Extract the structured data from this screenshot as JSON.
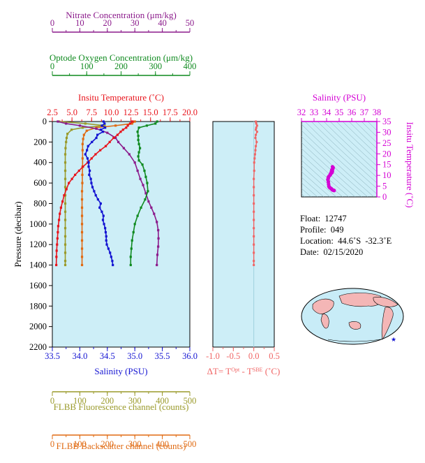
{
  "colors": {
    "nitrate": "#8b1a8b",
    "oxygen": "#0f8a1f",
    "temperature": "#e8141c",
    "salinity": "#1414d2",
    "fluorescence": "#9a9a2a",
    "backscatter": "#e06a12",
    "delta_t": "#f06464",
    "ts_axis": "#d400d4",
    "panel_bg": "#cdeef7"
  },
  "info": {
    "float": "Float:  12747",
    "profile": "Profile:  049",
    "location": "Location:  44.6˚S  -32.3˚E",
    "date": "Date:  02/15/2020"
  },
  "chart_data": [
    {
      "type": "line",
      "name": "profile-panel",
      "ylabel": "Pressure (decibar)",
      "ylim": [
        2200,
        0
      ],
      "yticks": [
        "0",
        "200",
        "400",
        "600",
        "800",
        "1000",
        "1200",
        "1400",
        "1600",
        "1800",
        "2000",
        "2200"
      ],
      "axes": {
        "nitrate": {
          "label": "Nitrate Concentration (μm/kg)",
          "lim": [
            0,
            50
          ],
          "ticks": [
            "0",
            "10",
            "20",
            "30",
            "40",
            "50"
          ]
        },
        "oxygen": {
          "label": "Optode Oxygen Concentration (μm/kg)",
          "lim": [
            0,
            400
          ],
          "ticks": [
            "0",
            "100",
            "200",
            "300",
            "400"
          ]
        },
        "temperature": {
          "label": "Insitu Temperature (˚C)",
          "lim": [
            2.5,
            20.0
          ],
          "ticks": [
            "2.5",
            "5.0",
            "7.5",
            "10.0",
            "12.5",
            "15.0",
            "17.5",
            "20.0"
          ]
        },
        "salinity": {
          "label": "Salinity (PSU)",
          "lim": [
            33.5,
            36.0
          ],
          "ticks": [
            "33.5",
            "34.0",
            "34.5",
            "35.0",
            "35.5",
            "36.0"
          ]
        },
        "fluorescence": {
          "label": "FLBB Fluorescence channel (counts)",
          "lim": [
            0,
            500
          ],
          "ticks": [
            "0",
            "100",
            "200",
            "300",
            "400",
            "500"
          ]
        },
        "backscatter": {
          "label": "FLBB Backscatter channel (counts)",
          "lim": [
            0,
            500
          ],
          "ticks": [
            "0",
            "100",
            "200",
            "300",
            "400",
            "500"
          ]
        }
      },
      "series": [
        {
          "axis": "nitrate",
          "values": [
            [
              2,
              0
            ],
            [
              5,
              20
            ],
            [
              10,
              40
            ],
            [
              16,
              70
            ],
            [
              20,
              110
            ],
            [
              23,
              160
            ],
            [
              24,
              200
            ],
            [
              26,
              260
            ],
            [
              28,
              320
            ],
            [
              30,
              400
            ],
            [
              31,
              480
            ],
            [
              32,
              560
            ],
            [
              33,
              620
            ],
            [
              34,
              700
            ],
            [
              35,
              780
            ],
            [
              36,
              840
            ],
            [
              37,
              900
            ],
            [
              38,
              980
            ],
            [
              38.5,
              1060
            ],
            [
              38.6,
              1140
            ],
            [
              38.5,
              1220
            ],
            [
              38.2,
              1300
            ],
            [
              38,
              1400
            ]
          ]
        },
        {
          "axis": "oxygen",
          "values": [
            [
              305,
              0
            ],
            [
              300,
              20
            ],
            [
              275,
              40
            ],
            [
              252,
              60
            ],
            [
              248,
              100
            ],
            [
              250,
              140
            ],
            [
              250,
              180
            ],
            [
              252,
              220
            ],
            [
              255,
              260
            ],
            [
              252,
              300
            ],
            [
              250,
              340
            ],
            [
              252,
              380
            ],
            [
              262,
              420
            ],
            [
              268,
              480
            ],
            [
              272,
              540
            ],
            [
              276,
              600
            ],
            [
              278,
              680
            ],
            [
              270,
              760
            ],
            [
              258,
              840
            ],
            [
              248,
              920
            ],
            [
              240,
              1000
            ],
            [
              236,
              1080
            ],
            [
              232,
              1160
            ],
            [
              230,
              1240
            ],
            [
              228,
              1320
            ],
            [
              228,
              1400
            ]
          ]
        },
        {
          "axis": "temperature",
          "values": [
            [
              12.7,
              0
            ],
            [
              12.4,
              20
            ],
            [
              12.1,
              40
            ],
            [
              11.9,
              60
            ],
            [
              11.5,
              80
            ],
            [
              11.2,
              100
            ],
            [
              10.8,
              130
            ],
            [
              10.3,
              160
            ],
            [
              9.8,
              200
            ],
            [
              9.3,
              240
            ],
            [
              8.6,
              280
            ],
            [
              8.0,
              320
            ],
            [
              7.5,
              360
            ],
            [
              7.0,
              400
            ],
            [
              6.4,
              440
            ],
            [
              5.9,
              480
            ],
            [
              5.4,
              520
            ],
            [
              5.0,
              560
            ],
            [
              4.6,
              600
            ],
            [
              4.3,
              660
            ],
            [
              4.0,
              720
            ],
            [
              3.8,
              780
            ],
            [
              3.6,
              840
            ],
            [
              3.45,
              900
            ],
            [
              3.35,
              960
            ],
            [
              3.25,
              1020
            ],
            [
              3.2,
              1080
            ],
            [
              3.15,
              1140
            ],
            [
              3.1,
              1200
            ],
            [
              3.05,
              1260
            ],
            [
              3.02,
              1320
            ],
            [
              3.0,
              1400
            ]
          ]
        },
        {
          "axis": "salinity",
          "values": [
            [
              34.43,
              0
            ],
            [
              34.45,
              20
            ],
            [
              34.4,
              40
            ],
            [
              34.46,
              60
            ],
            [
              34.38,
              80
            ],
            [
              34.42,
              100
            ],
            [
              34.32,
              130
            ],
            [
              34.3,
              160
            ],
            [
              34.22,
              200
            ],
            [
              34.15,
              240
            ],
            [
              34.13,
              280
            ],
            [
              34.1,
              320
            ],
            [
              34.14,
              360
            ],
            [
              34.16,
              400
            ],
            [
              34.16,
              440
            ],
            [
              34.18,
              480
            ],
            [
              34.17,
              520
            ],
            [
              34.2,
              560
            ],
            [
              34.21,
              600
            ],
            [
              34.23,
              640
            ],
            [
              34.26,
              680
            ],
            [
              34.29,
              720
            ],
            [
              34.33,
              760
            ],
            [
              34.38,
              800
            ],
            [
              34.36,
              840
            ],
            [
              34.4,
              880
            ],
            [
              34.43,
              920
            ],
            [
              34.42,
              960
            ],
            [
              34.44,
              1000
            ],
            [
              34.46,
              1040
            ],
            [
              34.47,
              1080
            ],
            [
              34.48,
              1120
            ],
            [
              34.48,
              1160
            ],
            [
              34.49,
              1200
            ],
            [
              34.52,
              1240
            ],
            [
              34.55,
              1280
            ],
            [
              34.57,
              1320
            ],
            [
              34.59,
              1360
            ],
            [
              34.6,
              1400
            ]
          ]
        },
        {
          "axis": "fluorescence",
          "values": [
            [
              25,
              0
            ],
            [
              120,
              20
            ],
            [
              190,
              40
            ],
            [
              110,
              60
            ],
            [
              70,
              80
            ],
            [
              55,
              120
            ],
            [
              52,
              160
            ],
            [
              50,
              200
            ],
            [
              48,
              260
            ],
            [
              47,
              320
            ],
            [
              47,
              400
            ],
            [
              47,
              480
            ],
            [
              47,
              560
            ],
            [
              47,
              640
            ],
            [
              47,
              720
            ],
            [
              47,
              800
            ],
            [
              47,
              880
            ],
            [
              47,
              960
            ],
            [
              47,
              1040
            ],
            [
              47,
              1120
            ],
            [
              47,
              1200
            ],
            [
              47,
              1280
            ],
            [
              47,
              1360
            ],
            [
              47,
              1400
            ]
          ]
        },
        {
          "axis": "backscatter",
          "values": [
            [
              300,
              0
            ],
            [
              290,
              20
            ],
            [
              230,
              40
            ],
            [
              160,
              60
            ],
            [
              125,
              90
            ],
            [
              115,
              130
            ],
            [
              112,
              170
            ],
            [
              110,
              220
            ],
            [
              110,
              280
            ],
            [
              110,
              360
            ],
            [
              110,
              440
            ],
            [
              109,
              520
            ],
            [
              109,
              600
            ],
            [
              108,
              680
            ],
            [
              108,
              760
            ],
            [
              108,
              840
            ],
            [
              108,
              920
            ],
            [
              108,
              1000
            ],
            [
              108,
              1080
            ],
            [
              108,
              1160
            ],
            [
              108,
              1240
            ],
            [
              108,
              1320
            ],
            [
              108,
              1400
            ]
          ]
        }
      ]
    },
    {
      "type": "scatter",
      "name": "delta-t-panel",
      "xlabel_prefix": "ΔT= T",
      "xlabel_sup1": "Opt",
      "xlabel_mid": " - T",
      "xlabel_sup2": "SBE",
      "xlabel_suffix": " (˚C)",
      "xlim": [
        -1.0,
        0.5
      ],
      "xticks": [
        "-1.0",
        "-0.5",
        "0.0",
        "0.5"
      ],
      "ylim": [
        2200,
        0
      ],
      "values": [
        [
          0.05,
          0
        ],
        [
          0.06,
          20
        ],
        [
          0.08,
          40
        ],
        [
          0.06,
          60
        ],
        [
          0.05,
          80
        ],
        [
          0.08,
          100
        ],
        [
          0.05,
          130
        ],
        [
          0.04,
          160
        ],
        [
          0.07,
          200
        ],
        [
          0.05,
          240
        ],
        [
          0.04,
          280
        ],
        [
          0.03,
          320
        ],
        [
          0.02,
          360
        ],
        [
          0.01,
          400
        ],
        [
          0.01,
          480
        ],
        [
          0.0,
          560
        ],
        [
          0.0,
          640
        ],
        [
          0.0,
          720
        ],
        [
          0.0,
          800
        ],
        [
          0.0,
          880
        ],
        [
          0.0,
          960
        ],
        [
          0.0,
          1040
        ],
        [
          0.0,
          1120
        ],
        [
          0.0,
          1200
        ],
        [
          0.0,
          1280
        ],
        [
          0.0,
          1360
        ],
        [
          0.0,
          1400
        ]
      ]
    },
    {
      "type": "scatter",
      "name": "ts-panel",
      "title": "Salinity (PSU)",
      "ylabel": "Insitu Temperature (˚C)",
      "xlim": [
        32,
        38
      ],
      "xticks": [
        "32",
        "33",
        "34",
        "35",
        "36",
        "37",
        "38"
      ],
      "ylim": [
        0,
        35
      ],
      "yticks": [
        "0",
        "5",
        "10",
        "15",
        "20",
        "25",
        "30",
        "35"
      ],
      "values": [
        [
          34.6,
          3.0
        ],
        [
          34.55,
          3.1
        ],
        [
          34.49,
          3.2
        ],
        [
          34.46,
          3.3
        ],
        [
          34.42,
          3.5
        ],
        [
          34.38,
          3.8
        ],
        [
          34.33,
          4.0
        ],
        [
          34.26,
          4.3
        ],
        [
          34.21,
          4.6
        ],
        [
          34.18,
          5.0
        ],
        [
          34.16,
          5.9
        ],
        [
          34.14,
          7.0
        ],
        [
          34.1,
          8.0
        ],
        [
          34.13,
          8.6
        ],
        [
          34.15,
          9.3
        ],
        [
          34.22,
          9.8
        ],
        [
          34.3,
          10.3
        ],
        [
          34.32,
          10.8
        ],
        [
          34.42,
          11.2
        ],
        [
          34.38,
          11.5
        ],
        [
          34.46,
          11.9
        ],
        [
          34.4,
          12.1
        ],
        [
          34.45,
          12.4
        ],
        [
          34.43,
          12.7
        ],
        [
          34.5,
          13.2
        ],
        [
          34.52,
          13.6
        ],
        [
          34.47,
          14.0
        ]
      ]
    }
  ]
}
